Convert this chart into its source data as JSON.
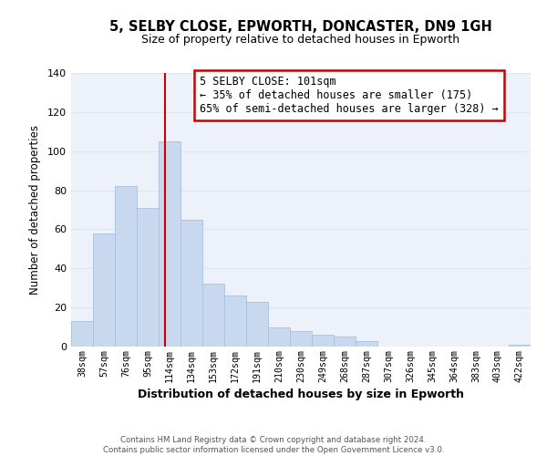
{
  "title": "5, SELBY CLOSE, EPWORTH, DONCASTER, DN9 1GH",
  "subtitle": "Size of property relative to detached houses in Epworth",
  "xlabel": "Distribution of detached houses by size in Epworth",
  "ylabel": "Number of detached properties",
  "bar_labels": [
    "38sqm",
    "57sqm",
    "76sqm",
    "95sqm",
    "114sqm",
    "134sqm",
    "153sqm",
    "172sqm",
    "191sqm",
    "210sqm",
    "230sqm",
    "249sqm",
    "268sqm",
    "287sqm",
    "307sqm",
    "326sqm",
    "345sqm",
    "364sqm",
    "383sqm",
    "403sqm",
    "422sqm"
  ],
  "bar_heights": [
    13,
    58,
    82,
    71,
    105,
    65,
    32,
    26,
    23,
    10,
    8,
    6,
    5,
    3,
    0,
    0,
    0,
    0,
    0,
    0,
    1
  ],
  "bar_color": "#c8d8ee",
  "bar_edge_color": "#a8c0dc",
  "vline_x": 3.78,
  "vline_color": "#cc0000",
  "ylim": [
    0,
    140
  ],
  "yticks": [
    0,
    20,
    40,
    60,
    80,
    100,
    120,
    140
  ],
  "annotation_title": "5 SELBY CLOSE: 101sqm",
  "annotation_line1": "← 35% of detached houses are smaller (175)",
  "annotation_line2": "65% of semi-detached houses are larger (328) →",
  "annotation_box_color": "#ffffff",
  "annotation_box_edge": "#cc0000",
  "footer1": "Contains HM Land Registry data © Crown copyright and database right 2024.",
  "footer2": "Contains public sector information licensed under the Open Government Licence v3.0.",
  "grid_color": "#dde5f0",
  "bg_color": "#edf2fa"
}
